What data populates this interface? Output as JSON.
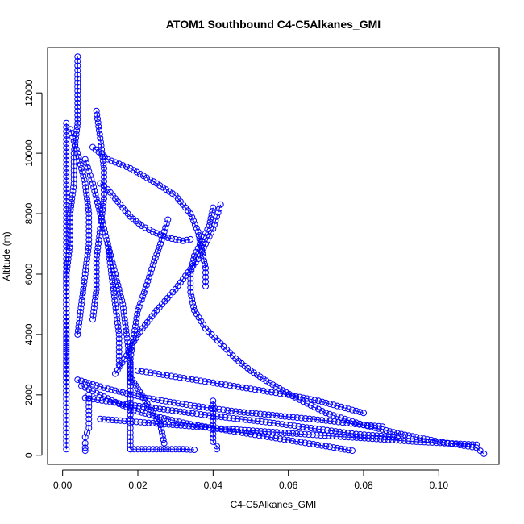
{
  "chart_data": {
    "type": "scatter",
    "title": "ATOM1 Southbound C4-C5Alkanes_GMI",
    "xlabel": "C4-C5Alkanes_GMI",
    "ylabel": "Altitude (m)",
    "xlim": [
      -0.004,
      0.116
    ],
    "ylim": [
      -300,
      13500
    ],
    "x_ticks": [
      0.0,
      0.02,
      0.04,
      0.06,
      0.08,
      0.1
    ],
    "x_tick_labels": [
      "0.00",
      "0.02",
      "0.04",
      "0.06",
      "0.08",
      "0.10"
    ],
    "y_ticks": [
      0,
      2000,
      4000,
      6000,
      8000,
      10000,
      12000
    ],
    "y_tick_labels": [
      "0",
      "2000",
      "4000",
      "6000",
      "8000",
      "10000",
      "12000"
    ],
    "marker": "open-circle",
    "color": "#0000ff",
    "series": [
      {
        "x": [
          0.04,
          0.039,
          0.037,
          0.035,
          0.034,
          0.034,
          0.035,
          0.038,
          0.042,
          0.046,
          0.05,
          0.055,
          0.062,
          0.07,
          0.08,
          0.09,
          0.1,
          0.11,
          0.112
        ],
        "y": [
          8200,
          7600,
          7100,
          6600,
          6000,
          5400,
          4800,
          4200,
          3700,
          3200,
          2800,
          2400,
          1900,
          1400,
          1000,
          700,
          450,
          250,
          50
        ]
      },
      {
        "x": [
          0.042,
          0.04,
          0.036,
          0.03,
          0.025,
          0.02,
          0.017,
          0.014
        ],
        "y": [
          8300,
          7500,
          6500,
          5500,
          4800,
          4000,
          3300,
          2700
        ]
      },
      {
        "x": [
          0.004,
          0.004,
          0.004,
          0.004,
          0.003,
          0.003,
          0.002,
          0.002,
          0.001,
          0.001,
          0.001,
          0.001,
          0.001
        ],
        "y": [
          13200,
          12600,
          11800,
          11000,
          10000,
          9000,
          8000,
          7000,
          6000,
          5000,
          4000,
          3000,
          2000
        ]
      },
      {
        "x": [
          0.008,
          0.012,
          0.018,
          0.025,
          0.03,
          0.034,
          0.036,
          0.037,
          0.038,
          0.038
        ],
        "y": [
          10200,
          9800,
          9500,
          9000,
          8600,
          8000,
          7400,
          6800,
          6200,
          5600
        ]
      },
      {
        "x": [
          0.01,
          0.012,
          0.014,
          0.016,
          0.018,
          0.021,
          0.024,
          0.028,
          0.032,
          0.034
        ],
        "y": [
          9000,
          8800,
          8500,
          8200,
          7900,
          7600,
          7400,
          7200,
          7100,
          7150
        ]
      },
      {
        "x": [
          0.028,
          0.026,
          0.024,
          0.022,
          0.02,
          0.019,
          0.018,
          0.018
        ],
        "y": [
          7800,
          7000,
          6300,
          5500,
          4800,
          4000,
          3200,
          2400
        ]
      },
      {
        "x": [
          0.012,
          0.014,
          0.016,
          0.017,
          0.018,
          0.018,
          0.018,
          0.018,
          0.018
        ],
        "y": [
          7000,
          6000,
          5000,
          4000,
          3000,
          2000,
          1200,
          600,
          200
        ]
      },
      {
        "x": [
          0.006,
          0.008,
          0.01,
          0.012,
          0.013,
          0.014,
          0.015,
          0.015
        ],
        "y": [
          9800,
          9000,
          8000,
          7000,
          6000,
          5000,
          4000,
          3000
        ]
      },
      {
        "x": [
          0.002,
          0.004,
          0.006,
          0.007,
          0.007,
          0.006,
          0.005,
          0.004
        ],
        "y": [
          10800,
          10000,
          9000,
          8000,
          7000,
          6000,
          5000,
          4000
        ]
      },
      {
        "x": [
          0.005,
          0.01,
          0.015,
          0.02,
          0.026,
          0.033,
          0.04,
          0.05,
          0.06,
          0.07,
          0.077
        ],
        "y": [
          2300,
          2000,
          1700,
          1450,
          1250,
          1050,
          900,
          700,
          500,
          300,
          150
        ]
      },
      {
        "x": [
          0.004,
          0.012,
          0.022,
          0.034,
          0.046,
          0.058,
          0.07,
          0.08,
          0.085
        ],
        "y": [
          2500,
          2200,
          1900,
          1650,
          1450,
          1300,
          1150,
          1000,
          950
        ]
      },
      {
        "x": [
          0.006,
          0.016,
          0.028,
          0.04,
          0.054,
          0.066,
          0.078,
          0.089
        ],
        "y": [
          1900,
          1700,
          1500,
          1300,
          1100,
          900,
          700,
          600
        ]
      },
      {
        "x": [
          0.01,
          0.025,
          0.04,
          0.058,
          0.076,
          0.094,
          0.11
        ],
        "y": [
          1200,
          1050,
          900,
          750,
          600,
          450,
          350
        ]
      },
      {
        "x": [
          0.02,
          0.03,
          0.04,
          0.05,
          0.06,
          0.068,
          0.074,
          0.08
        ],
        "y": [
          2800,
          2600,
          2400,
          2200,
          2000,
          1800,
          1600,
          1400
        ]
      },
      {
        "x": [
          0.007,
          0.007,
          0.007,
          0.007,
          0.006,
          0.006,
          0.006,
          0.006
        ],
        "y": [
          2000,
          1600,
          1200,
          900,
          600,
          400,
          250,
          150
        ]
      },
      {
        "x": [
          0.018,
          0.019,
          0.02,
          0.021,
          0.022,
          0.024,
          0.026,
          0.029,
          0.032,
          0.035
        ],
        "y": [
          200,
          200,
          200,
          200,
          200,
          200,
          200,
          200,
          200,
          180
        ]
      },
      {
        "x": [
          0.04,
          0.04,
          0.04,
          0.04,
          0.04,
          0.041,
          0.041
        ],
        "y": [
          1800,
          1400,
          1000,
          700,
          450,
          300,
          200
        ]
      },
      {
        "x": [
          0.001,
          0.001,
          0.001,
          0.001,
          0.001,
          0.001,
          0.001,
          0.001
        ],
        "y": [
          11000,
          9500,
          8000,
          6500,
          5000,
          3500,
          2000,
          200
        ]
      },
      {
        "x": [
          0.009,
          0.01,
          0.011,
          0.011,
          0.01,
          0.009,
          0.009,
          0.008
        ],
        "y": [
          11400,
          10500,
          9500,
          8500,
          7500,
          6500,
          5500,
          4500
        ]
      },
      {
        "x": [
          0.018,
          0.02,
          0.022,
          0.024,
          0.026,
          0.027
        ],
        "y": [
          2600,
          2200,
          1800,
          1400,
          1000,
          400
        ]
      }
    ]
  }
}
